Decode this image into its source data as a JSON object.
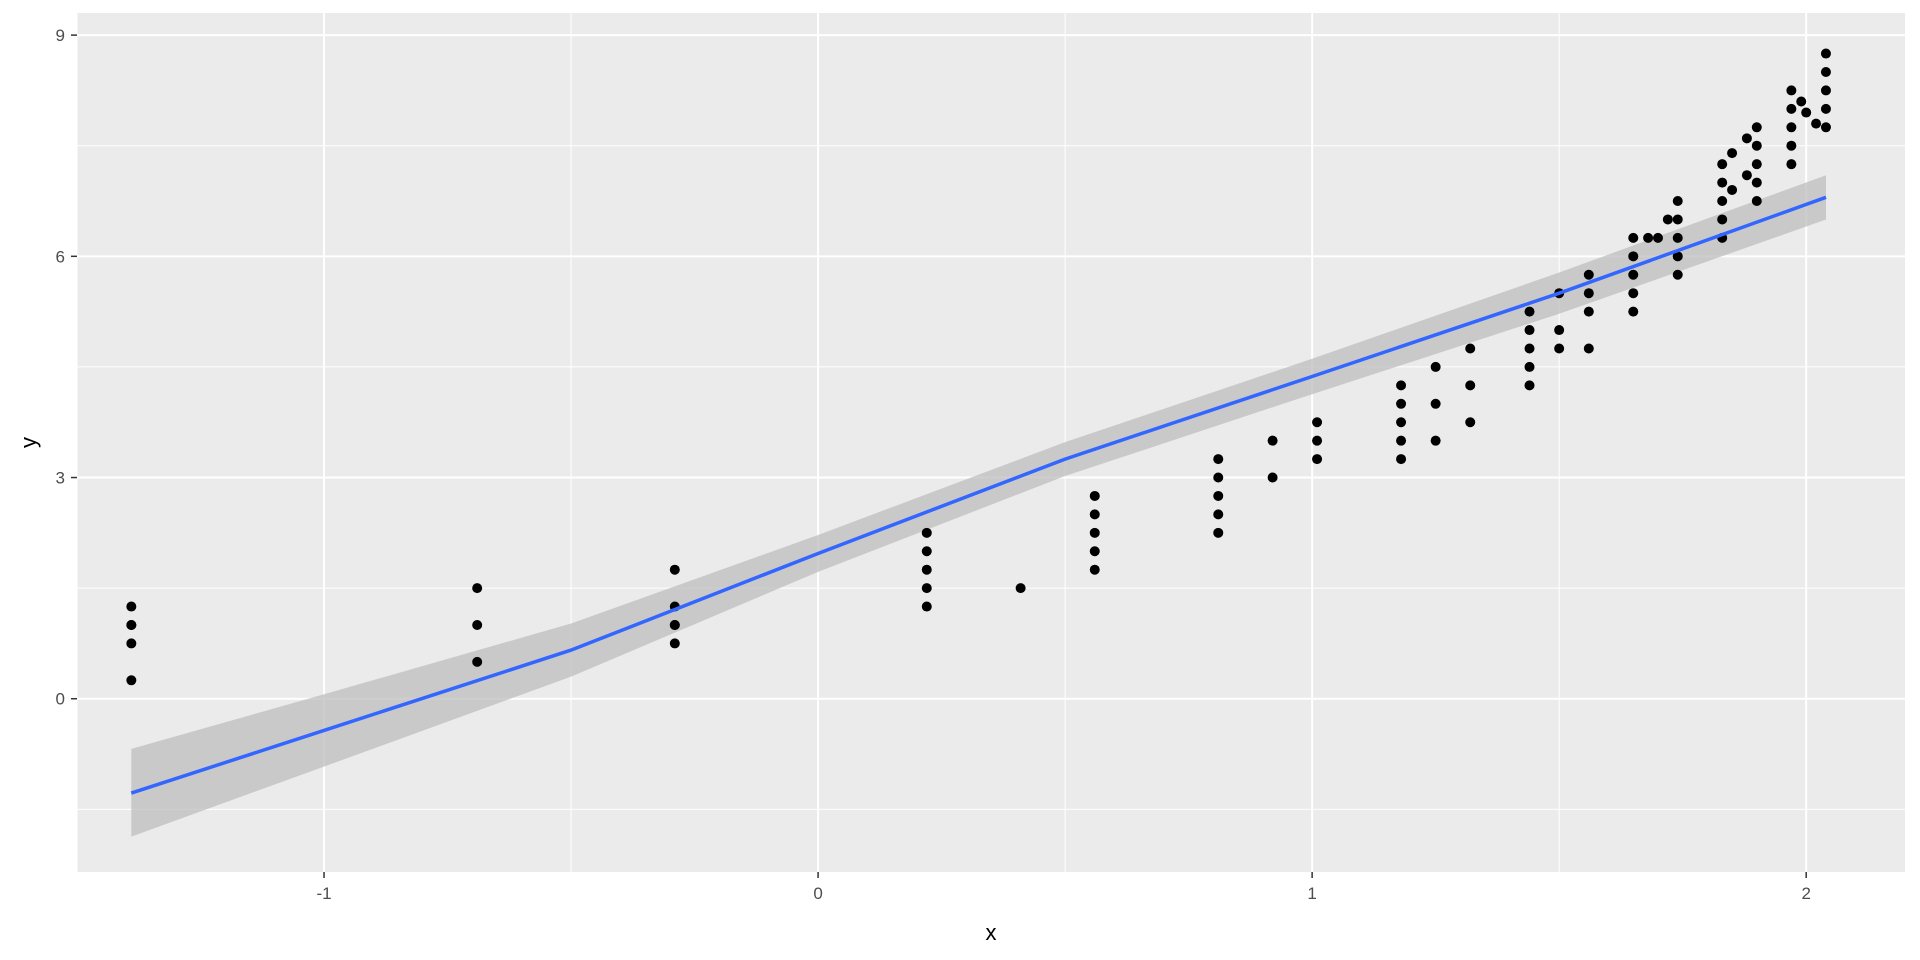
{
  "chart_data": {
    "type": "scatter",
    "xlabel": "x",
    "ylabel": "y",
    "xlim": [
      -1.5,
      2.2
    ],
    "ylim": [
      -2.35,
      9.3
    ],
    "x_ticks": [
      -1,
      0,
      1,
      2
    ],
    "x_minor_ticks": [
      -1.5,
      -0.5,
      0.5,
      1.5
    ],
    "y_ticks": [
      0,
      3,
      6,
      9
    ],
    "y_minor_ticks": [
      -1.5,
      1.5,
      4.5,
      7.5
    ],
    "x_tick_labels": [
      "-1",
      "0",
      "1",
      "2"
    ],
    "y_tick_labels": [
      "0",
      "3",
      "6",
      "9"
    ],
    "grid": true,
    "colors": {
      "panel": "#ebebeb",
      "grid": "#ffffff",
      "points": "#000000",
      "fit_line": "#3366ff",
      "confidence_band": "#bebebe"
    },
    "points": [
      {
        "x": -1.39,
        "y": 0.25
      },
      {
        "x": -1.39,
        "y": 0.75
      },
      {
        "x": -1.39,
        "y": 1.0
      },
      {
        "x": -1.39,
        "y": 1.0
      },
      {
        "x": -1.39,
        "y": 1.25
      },
      {
        "x": -0.69,
        "y": 0.5
      },
      {
        "x": -0.69,
        "y": 1.0
      },
      {
        "x": -0.69,
        "y": 1.5
      },
      {
        "x": -0.29,
        "y": 0.75
      },
      {
        "x": -0.29,
        "y": 1.0
      },
      {
        "x": -0.29,
        "y": 1.0
      },
      {
        "x": -0.29,
        "y": 1.25
      },
      {
        "x": -0.29,
        "y": 1.75
      },
      {
        "x": 0.22,
        "y": 1.25
      },
      {
        "x": 0.22,
        "y": 1.5
      },
      {
        "x": 0.22,
        "y": 1.75
      },
      {
        "x": 0.22,
        "y": 2.0
      },
      {
        "x": 0.22,
        "y": 2.25
      },
      {
        "x": 0.41,
        "y": 1.5
      },
      {
        "x": 0.56,
        "y": 1.75
      },
      {
        "x": 0.56,
        "y": 2.0
      },
      {
        "x": 0.56,
        "y": 2.25
      },
      {
        "x": 0.56,
        "y": 2.5
      },
      {
        "x": 0.56,
        "y": 2.75
      },
      {
        "x": 0.81,
        "y": 2.25
      },
      {
        "x": 0.81,
        "y": 2.5
      },
      {
        "x": 0.81,
        "y": 2.75
      },
      {
        "x": 0.81,
        "y": 3.0
      },
      {
        "x": 0.81,
        "y": 3.25
      },
      {
        "x": 0.92,
        "y": 3.0
      },
      {
        "x": 0.92,
        "y": 3.5
      },
      {
        "x": 1.01,
        "y": 3.25
      },
      {
        "x": 1.01,
        "y": 3.5
      },
      {
        "x": 1.01,
        "y": 3.75
      },
      {
        "x": 1.18,
        "y": 3.25
      },
      {
        "x": 1.18,
        "y": 3.5
      },
      {
        "x": 1.18,
        "y": 3.75
      },
      {
        "x": 1.18,
        "y": 4.0
      },
      {
        "x": 1.18,
        "y": 4.25
      },
      {
        "x": 1.25,
        "y": 3.5
      },
      {
        "x": 1.25,
        "y": 4.0
      },
      {
        "x": 1.25,
        "y": 4.5
      },
      {
        "x": 1.32,
        "y": 3.75
      },
      {
        "x": 1.32,
        "y": 4.25
      },
      {
        "x": 1.32,
        "y": 4.75
      },
      {
        "x": 1.44,
        "y": 4.25
      },
      {
        "x": 1.44,
        "y": 4.5
      },
      {
        "x": 1.44,
        "y": 4.75
      },
      {
        "x": 1.44,
        "y": 5.0
      },
      {
        "x": 1.44,
        "y": 5.25
      },
      {
        "x": 1.5,
        "y": 4.75
      },
      {
        "x": 1.5,
        "y": 5.0
      },
      {
        "x": 1.5,
        "y": 5.5
      },
      {
        "x": 1.56,
        "y": 4.75
      },
      {
        "x": 1.56,
        "y": 5.25
      },
      {
        "x": 1.56,
        "y": 5.5
      },
      {
        "x": 1.56,
        "y": 5.75
      },
      {
        "x": 1.65,
        "y": 5.25
      },
      {
        "x": 1.65,
        "y": 5.5
      },
      {
        "x": 1.65,
        "y": 5.75
      },
      {
        "x": 1.65,
        "y": 6.0
      },
      {
        "x": 1.65,
        "y": 6.25
      },
      {
        "x": 1.68,
        "y": 6.25
      },
      {
        "x": 1.7,
        "y": 6.25
      },
      {
        "x": 1.72,
        "y": 6.5
      },
      {
        "x": 1.74,
        "y": 5.75
      },
      {
        "x": 1.74,
        "y": 6.0
      },
      {
        "x": 1.74,
        "y": 6.25
      },
      {
        "x": 1.74,
        "y": 6.5
      },
      {
        "x": 1.74,
        "y": 6.75
      },
      {
        "x": 1.83,
        "y": 6.25
      },
      {
        "x": 1.83,
        "y": 6.5
      },
      {
        "x": 1.83,
        "y": 6.75
      },
      {
        "x": 1.83,
        "y": 7.0
      },
      {
        "x": 1.83,
        "y": 7.25
      },
      {
        "x": 1.85,
        "y": 6.9
      },
      {
        "x": 1.85,
        "y": 7.4
      },
      {
        "x": 1.88,
        "y": 7.1
      },
      {
        "x": 1.88,
        "y": 7.6
      },
      {
        "x": 1.9,
        "y": 6.75
      },
      {
        "x": 1.9,
        "y": 7.0
      },
      {
        "x": 1.9,
        "y": 7.25
      },
      {
        "x": 1.9,
        "y": 7.5
      },
      {
        "x": 1.9,
        "y": 7.75
      },
      {
        "x": 1.97,
        "y": 7.25
      },
      {
        "x": 1.97,
        "y": 7.5
      },
      {
        "x": 1.97,
        "y": 7.75
      },
      {
        "x": 1.97,
        "y": 8.0
      },
      {
        "x": 1.97,
        "y": 8.25
      },
      {
        "x": 1.99,
        "y": 8.1
      },
      {
        "x": 2.0,
        "y": 7.95
      },
      {
        "x": 2.02,
        "y": 7.8
      },
      {
        "x": 2.04,
        "y": 7.75
      },
      {
        "x": 2.04,
        "y": 8.0
      },
      {
        "x": 2.04,
        "y": 8.25
      },
      {
        "x": 2.04,
        "y": 8.5
      },
      {
        "x": 2.04,
        "y": 8.75
      }
    ],
    "fit": {
      "method": "linear",
      "x": [
        -1.39,
        -1.0,
        -0.5,
        0.0,
        0.5,
        1.0,
        1.5,
        2.04
      ],
      "y": [
        -1.28,
        -0.43,
        0.66,
        1.97,
        3.25,
        4.37,
        5.5,
        6.8
      ],
      "ymin": [
        -1.87,
        -0.92,
        0.3,
        1.72,
        3.02,
        4.13,
        5.22,
        6.5
      ],
      "ymax": [
        -0.68,
        0.06,
        1.02,
        2.22,
        3.48,
        4.61,
        5.78,
        7.1
      ]
    }
  }
}
